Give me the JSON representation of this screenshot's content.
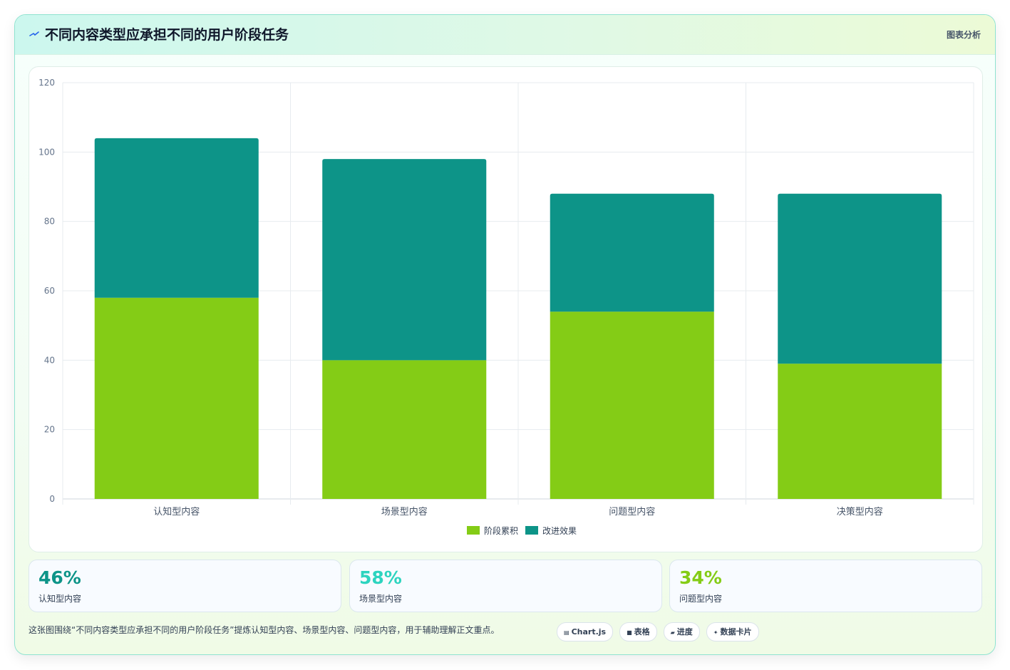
{
  "header": {
    "title": "不同内容类型应承担不同的用户阶段任务",
    "link_label": "图表分析",
    "icon": "sparkle-icon"
  },
  "chart_data": {
    "type": "bar",
    "stacked": true,
    "categories": [
      "认知型内容",
      "场景型内容",
      "问题型内容",
      "决策型内容"
    ],
    "series": [
      {
        "name": "阶段累积",
        "values": [
          58,
          40,
          54,
          39
        ],
        "color": "#84cc16"
      },
      {
        "name": "改进效果",
        "values": [
          46,
          58,
          34,
          49
        ],
        "color": "#0d9488"
      }
    ],
    "ylim": [
      0,
      120
    ],
    "yticks": [
      0,
      20,
      40,
      60,
      80,
      100,
      120
    ],
    "grid": true,
    "legend": "bottom-center"
  },
  "stats": [
    {
      "value": "46%",
      "label": "认知型内容",
      "color": "#0d9488"
    },
    {
      "value": "58%",
      "label": "场景型内容",
      "color": "#2dd4bf"
    },
    {
      "value": "34%",
      "label": "问题型内容",
      "color": "#84cc16"
    }
  ],
  "footer": {
    "text": "这张图围绕“不同内容类型应承担不同的用户阶段任务”提炼认知型内容、场景型内容、问题型内容，用于辅助理解正文重点。",
    "tags": [
      {
        "label": "Chart.js",
        "icon": "▤"
      },
      {
        "label": "表格",
        "icon": "■"
      },
      {
        "label": "进度",
        "icon": "▰"
      },
      {
        "label": "数据卡片",
        "icon": "✦"
      }
    ]
  }
}
